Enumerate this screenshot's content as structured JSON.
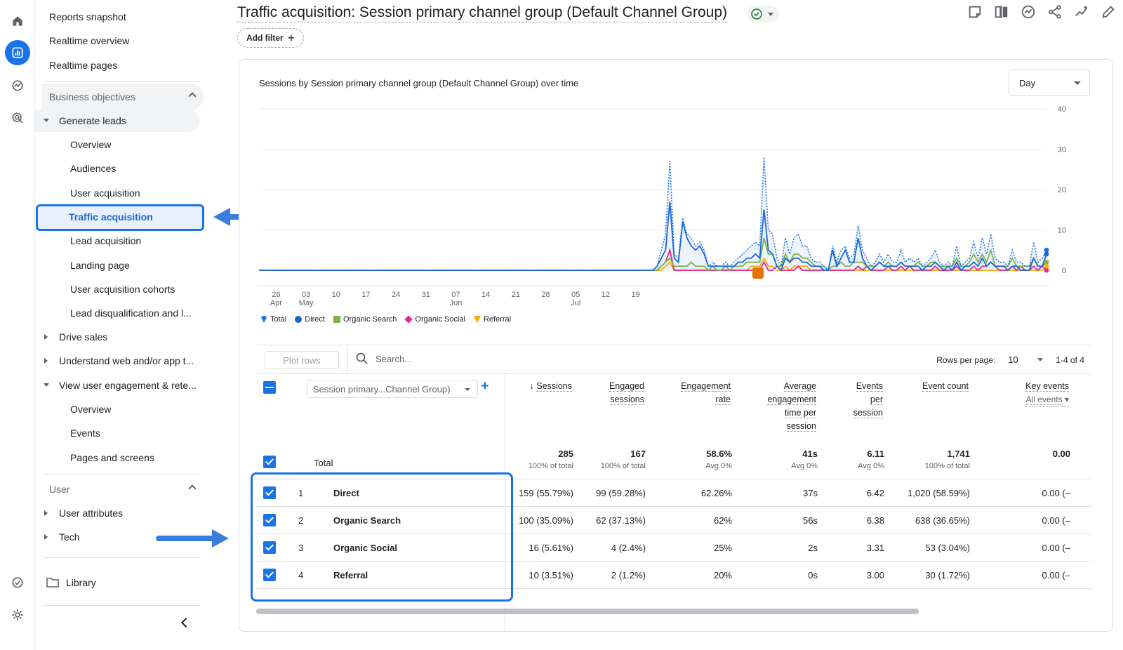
{
  "sidebar": {
    "top_items": [
      "Reports snapshot",
      "Realtime overview",
      "Realtime pages"
    ],
    "business_objectives": "Business objectives",
    "generate_leads": "Generate leads",
    "generate_leads_items": [
      "Overview",
      "Audiences",
      "User acquisition",
      "Traffic acquisition",
      "Lead acquisition",
      "Landing page",
      "User acquisition cohorts",
      "Lead disqualification and l..."
    ],
    "drive_sales": "Drive sales",
    "understand": "Understand web and/or app t...",
    "view_engagement": "View user engagement & rete...",
    "engagement_items": [
      "Overview",
      "Events",
      "Pages and screens"
    ],
    "user_section": "User",
    "user_attributes": "User attributes",
    "tech": "Tech",
    "library": "Library",
    "selected_item": "Traffic acquisition"
  },
  "header": {
    "title": "Traffic acquisition: Session primary channel group (Default Channel Group)",
    "add_filter": "Add filter"
  },
  "card": {
    "chart_title": "Sessions by Session primary channel group (Default Channel Group) over time",
    "granularity": "Day"
  },
  "chart_data": {
    "type": "line",
    "x_ticks": [
      {
        "top": "26",
        "bottom": "Apr"
      },
      {
        "top": "03",
        "bottom": "May"
      },
      {
        "top": "10",
        "bottom": ""
      },
      {
        "top": "17",
        "bottom": ""
      },
      {
        "top": "24",
        "bottom": ""
      },
      {
        "top": "31",
        "bottom": ""
      },
      {
        "top": "07",
        "bottom": "Jun"
      },
      {
        "top": "14",
        "bottom": ""
      },
      {
        "top": "21",
        "bottom": ""
      },
      {
        "top": "28",
        "bottom": ""
      },
      {
        "top": "05",
        "bottom": "Jul"
      },
      {
        "top": "12",
        "bottom": ""
      },
      {
        "top": "19",
        "bottom": ""
      }
    ],
    "y_ticks": [
      0,
      10,
      20,
      30,
      40
    ],
    "ylim": [
      0,
      40
    ],
    "series": [
      {
        "name": "Total",
        "color": "#1a73e8",
        "style": "dotted",
        "values": [
          0,
          0,
          0,
          0,
          0,
          0,
          0,
          0,
          0,
          0,
          0,
          0,
          0,
          0,
          0,
          0,
          0,
          0,
          0,
          0,
          0,
          0,
          0,
          0,
          0,
          0,
          0,
          0,
          0,
          0,
          0,
          0,
          0,
          0,
          0,
          0,
          0,
          0,
          0,
          0,
          0,
          0,
          0,
          0,
          0,
          0,
          0,
          0,
          0,
          0,
          0,
          0,
          0,
          0,
          0,
          0,
          0,
          0,
          0,
          0,
          0,
          0,
          0,
          0,
          0,
          0,
          0,
          0,
          0,
          0,
          0,
          0,
          0,
          0,
          0,
          0,
          0,
          0,
          0,
          0,
          0,
          0,
          0,
          0,
          0,
          0,
          0,
          0,
          0,
          0,
          0,
          0,
          0,
          1,
          5,
          9,
          27,
          4,
          3,
          13,
          9,
          8,
          6,
          7,
          5,
          1,
          2,
          1,
          1,
          2,
          1,
          2,
          3,
          4,
          5,
          6,
          7,
          6,
          28,
          10,
          9,
          3,
          1,
          8,
          4,
          8,
          9,
          6,
          6,
          3,
          2,
          2,
          1,
          0,
          6,
          2,
          5,
          6,
          3,
          4,
          11,
          5,
          3,
          1,
          2,
          4,
          2,
          4,
          2,
          2,
          5,
          2,
          3,
          2,
          3,
          1,
          2,
          3,
          5,
          2,
          1,
          2,
          1,
          6,
          1,
          2,
          3,
          7,
          3,
          8,
          4,
          9,
          3,
          2,
          2,
          1,
          5,
          2,
          2,
          1,
          1,
          7,
          2,
          3,
          5
        ]
      },
      {
        "name": "Direct",
        "color": "#1967d2",
        "style": "solid",
        "values": [
          0,
          0,
          0,
          0,
          0,
          0,
          0,
          0,
          0,
          0,
          0,
          0,
          0,
          0,
          0,
          0,
          0,
          0,
          0,
          0,
          0,
          0,
          0,
          0,
          0,
          0,
          0,
          0,
          0,
          0,
          0,
          0,
          0,
          0,
          0,
          0,
          0,
          0,
          0,
          0,
          0,
          0,
          0,
          0,
          0,
          0,
          0,
          0,
          0,
          0,
          0,
          0,
          0,
          0,
          0,
          0,
          0,
          0,
          0,
          0,
          0,
          0,
          0,
          0,
          0,
          0,
          0,
          0,
          0,
          0,
          0,
          0,
          0,
          0,
          0,
          0,
          0,
          0,
          0,
          0,
          0,
          0,
          0,
          0,
          0,
          0,
          0,
          0,
          0,
          0,
          0,
          0,
          0,
          1,
          3,
          5,
          17,
          3,
          2,
          12,
          8,
          6,
          5,
          6,
          4,
          1,
          1,
          1,
          1,
          1,
          1,
          1,
          2,
          2,
          3,
          3,
          4,
          3,
          15,
          5,
          4,
          1,
          0,
          3,
          2,
          3,
          3,
          2,
          2,
          1,
          1,
          1,
          0,
          0,
          5,
          1,
          3,
          5,
          2,
          2,
          8,
          3,
          1,
          0,
          1,
          2,
          1,
          1,
          1,
          1,
          2,
          1,
          1,
          1,
          1,
          0,
          1,
          1,
          2,
          1,
          0,
          1,
          0,
          2,
          0,
          1,
          1,
          2,
          1,
          3,
          1,
          2,
          1,
          1,
          1,
          0,
          1,
          1,
          0,
          0,
          0,
          3,
          1,
          1,
          4
        ]
      },
      {
        "name": "Organic Search",
        "color": "#7cb342",
        "style": "solid",
        "values": [
          0,
          0,
          0,
          0,
          0,
          0,
          0,
          0,
          0,
          0,
          0,
          0,
          0,
          0,
          0,
          0,
          0,
          0,
          0,
          0,
          0,
          0,
          0,
          0,
          0,
          0,
          0,
          0,
          0,
          0,
          0,
          0,
          0,
          0,
          0,
          0,
          0,
          0,
          0,
          0,
          0,
          0,
          0,
          0,
          0,
          0,
          0,
          0,
          0,
          0,
          0,
          0,
          0,
          0,
          0,
          0,
          0,
          0,
          0,
          0,
          0,
          0,
          0,
          0,
          0,
          0,
          0,
          0,
          0,
          0,
          0,
          0,
          0,
          0,
          0,
          0,
          0,
          0,
          0,
          0,
          0,
          0,
          0,
          0,
          0,
          0,
          0,
          0,
          0,
          0,
          0,
          0,
          0,
          0,
          1,
          2,
          3,
          1,
          1,
          1,
          1,
          2,
          1,
          1,
          1,
          0,
          1,
          0,
          0,
          1,
          0,
          1,
          1,
          1,
          2,
          2,
          2,
          2,
          8,
          4,
          4,
          1,
          1,
          4,
          2,
          4,
          4,
          3,
          3,
          2,
          1,
          1,
          1,
          0,
          1,
          1,
          2,
          1,
          1,
          2,
          2,
          2,
          1,
          1,
          1,
          2,
          1,
          2,
          1,
          1,
          2,
          1,
          1,
          1,
          2,
          1,
          1,
          2,
          2,
          1,
          1,
          1,
          1,
          3,
          1,
          1,
          2,
          4,
          2,
          4,
          2,
          5,
          1,
          1,
          1,
          1,
          3,
          1,
          1,
          1,
          1,
          3,
          1,
          1,
          2
        ]
      },
      {
        "name": "Organic Social",
        "color": "#e52592",
        "style": "solid",
        "values": [
          0,
          0,
          0,
          0,
          0,
          0,
          0,
          0,
          0,
          0,
          0,
          0,
          0,
          0,
          0,
          0,
          0,
          0,
          0,
          0,
          0,
          0,
          0,
          0,
          0,
          0,
          0,
          0,
          0,
          0,
          0,
          0,
          0,
          0,
          0,
          0,
          0,
          0,
          0,
          0,
          0,
          0,
          0,
          0,
          0,
          0,
          0,
          0,
          0,
          0,
          0,
          0,
          0,
          0,
          0,
          0,
          0,
          0,
          0,
          0,
          0,
          0,
          0,
          0,
          0,
          0,
          0,
          0,
          0,
          0,
          0,
          0,
          0,
          0,
          0,
          0,
          0,
          0,
          0,
          0,
          0,
          0,
          0,
          0,
          0,
          0,
          0,
          0,
          0,
          0,
          0,
          0,
          0,
          0,
          1,
          2,
          5,
          0,
          0,
          0,
          0,
          0,
          0,
          0,
          0,
          0,
          0,
          0,
          0,
          0,
          0,
          0,
          0,
          0,
          0,
          0,
          0,
          0,
          2,
          0,
          0,
          1,
          0,
          0,
          0,
          0,
          1,
          0,
          0,
          0,
          0,
          0,
          0,
          0,
          0,
          0,
          0,
          0,
          0,
          0,
          1,
          0,
          1,
          0,
          0,
          0,
          0,
          1,
          0,
          0,
          1,
          0,
          1,
          0,
          0,
          0,
          0,
          0,
          1,
          0,
          0,
          0,
          0,
          1,
          0,
          0,
          0,
          1,
          0,
          1,
          1,
          2,
          1,
          0,
          0,
          0,
          1,
          0,
          1,
          0,
          0,
          1,
          0,
          1,
          0
        ]
      },
      {
        "name": "Referral",
        "color": "#f9ab00",
        "style": "solid",
        "values": [
          0,
          0,
          0,
          0,
          0,
          0,
          0,
          0,
          0,
          0,
          0,
          0,
          0,
          0,
          0,
          0,
          0,
          0,
          0,
          0,
          0,
          0,
          0,
          0,
          0,
          0,
          0,
          0,
          0,
          0,
          0,
          0,
          0,
          0,
          0,
          0,
          0,
          0,
          0,
          0,
          0,
          0,
          0,
          0,
          0,
          0,
          0,
          0,
          0,
          0,
          0,
          0,
          0,
          0,
          0,
          0,
          0,
          0,
          0,
          0,
          0,
          0,
          0,
          0,
          0,
          0,
          0,
          0,
          0,
          0,
          0,
          0,
          0,
          0,
          0,
          0,
          0,
          0,
          0,
          0,
          0,
          0,
          0,
          0,
          0,
          0,
          0,
          0,
          0,
          0,
          0,
          0,
          0,
          0,
          0,
          1,
          2,
          0,
          0,
          0,
          0,
          0,
          0,
          0,
          0,
          0,
          0,
          0,
          0,
          0,
          0,
          0,
          0,
          0,
          0,
          1,
          1,
          1,
          3,
          1,
          1,
          0,
          0,
          1,
          0,
          1,
          1,
          1,
          1,
          0,
          0,
          0,
          0,
          0,
          0,
          0,
          0,
          0,
          0,
          0,
          0,
          0,
          0,
          0,
          0,
          0,
          0,
          0,
          0,
          0,
          0,
          0,
          0,
          0,
          0,
          0,
          0,
          0,
          0,
          0,
          0,
          0,
          0,
          0,
          0,
          0,
          0,
          0,
          0,
          0,
          0,
          0,
          0,
          0,
          0,
          0,
          0,
          0,
          0,
          0,
          0,
          0,
          0,
          0,
          1
        ]
      }
    ]
  },
  "table": {
    "plot_rows": "Plot rows",
    "search_placeholder": "Search...",
    "rows_per_page_label": "Rows per page:",
    "rows_per_page": "10",
    "page_range": "1-4 of 4",
    "dimension": "Session primary...Channel Group)",
    "columns": [
      {
        "label": "Sessions",
        "lines": [
          "Sessions"
        ],
        "sorted": true
      },
      {
        "label": "Engaged sessions",
        "lines": [
          "Engaged",
          "sessions"
        ]
      },
      {
        "label": "Engagement rate",
        "lines": [
          "Engagement",
          "rate"
        ]
      },
      {
        "label": "Average engagement time per session",
        "lines": [
          "Average",
          "engagement",
          "time per",
          "session"
        ]
      },
      {
        "label": "Events per session",
        "lines": [
          "Events",
          "per",
          "session"
        ]
      },
      {
        "label": "Event count",
        "lines": [
          "Event count"
        ]
      },
      {
        "label": "Key events",
        "lines": [
          "Key events"
        ],
        "sub": "All events"
      }
    ],
    "total": {
      "label": "Total",
      "values": [
        {
          "v": "285",
          "s": "100% of total"
        },
        {
          "v": "167",
          "s": "100% of total"
        },
        {
          "v": "58.6%",
          "s": "Avg 0%"
        },
        {
          "v": "41s",
          "s": "Avg 0%"
        },
        {
          "v": "6.11",
          "s": "Avg 0%"
        },
        {
          "v": "1,741",
          "s": "100% of total"
        },
        {
          "v": "0.00",
          "s": ""
        }
      ]
    },
    "rows": [
      {
        "n": "1",
        "name": "Direct",
        "values": [
          "159 (55.79%)",
          "99 (59.28%)",
          "62.26%",
          "37s",
          "6.42",
          "1,020 (58.59%)",
          "0.00 (–"
        ]
      },
      {
        "n": "2",
        "name": "Organic Search",
        "values": [
          "100 (35.09%)",
          "62 (37.13%)",
          "62%",
          "56s",
          "6.38",
          "638 (36.65%)",
          "0.00 (–"
        ]
      },
      {
        "n": "3",
        "name": "Organic Social",
        "values": [
          "16 (5.61%)",
          "4 (2.4%)",
          "25%",
          "2s",
          "3.31",
          "53 (3.04%)",
          "0.00 (–"
        ]
      },
      {
        "n": "4",
        "name": "Referral",
        "values": [
          "10 (3.51%)",
          "2 (1.2%)",
          "20%",
          "0s",
          "3.00",
          "30 (1.72%)",
          "0.00 (–"
        ]
      }
    ]
  },
  "colors": {
    "accent": "#1a73e8",
    "annotation_arrow": "#3b7ddd"
  }
}
